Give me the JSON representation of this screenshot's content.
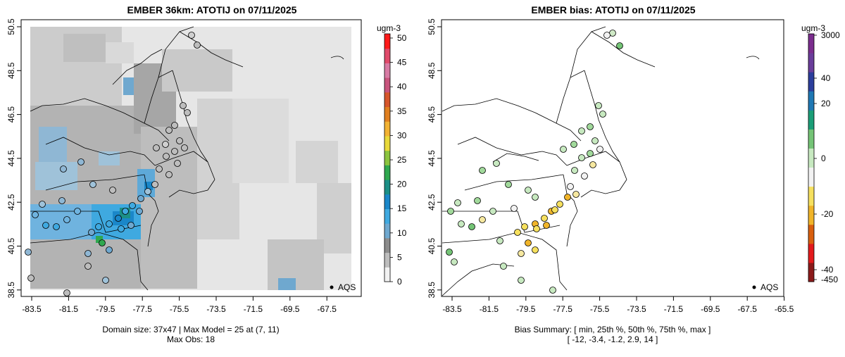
{
  "panels": [
    {
      "id": "left",
      "title": "EMBER 36km: ATOTIJ on 07/11/2025",
      "footer_line1": "Domain size: 37x47 | Max Model = 25 at (7, 11)",
      "footer_line2": "Max Obs: 18",
      "legend_label": "AQS",
      "colorbar": {
        "unit": "ugm-3",
        "ticks": [
          "0",
          "5",
          "10",
          "15",
          "20",
          "25",
          "30",
          "35",
          "40",
          "45",
          "50"
        ],
        "min": 0,
        "max": 50,
        "colors": [
          "#f2f2f2",
          "#bdbdbd",
          "#8c8c8c",
          "#6fa8cf",
          "#3fa9e0",
          "#1a87c9",
          "#1b8f86",
          "#2fa84f",
          "#8bc43f",
          "#e8d93a",
          "#f2b233",
          "#e07f1f",
          "#d6562b",
          "#c8547d",
          "#d87ba4",
          "#e04a6a",
          "#ff1a1a"
        ]
      }
    },
    {
      "id": "right",
      "title": "EMBER bias: ATOTIJ on 07/11/2025",
      "footer_line1": "Bias Summary: [ min, 25th %, 50th %, 75th %, max ]",
      "footer_line2": "[ -12,   -3.4,   -1.2,   2.9,   14 ]",
      "legend_label": "AQS",
      "colorbar": {
        "unit": "ugm-3",
        "ticks": [
          "3000",
          "40",
          "20",
          "0",
          "-20",
          "-40",
          "-450"
        ],
        "colors": [
          "#8b1a1a",
          "#e31a1c",
          "#d95f0e",
          "#f0b429",
          "#f6e05e",
          "#f2f2f2",
          "#c7e9c0",
          "#74c476",
          "#1b9e77",
          "#1f78b4",
          "#2c3e9c",
          "#6a3d9a",
          "#7b2d8e"
        ]
      }
    }
  ],
  "x_ticks": [
    "-83.5",
    "-81.5",
    "-79.5",
    "-77.5",
    "-75.5",
    "-73.5",
    "-71.5",
    "-69.5",
    "-67.5",
    "-65.5"
  ],
  "y_ticks": [
    "50.5",
    "48.5",
    "46.5",
    "44.5",
    "42.5",
    "40.5",
    "38.5"
  ],
  "bias_summary": {
    "min": -12,
    "p25": -3.4,
    "p50": -1.2,
    "p75": 2.9,
    "max": 14
  },
  "max_model": 25,
  "max_obs": 18,
  "domain_size": "37x47"
}
